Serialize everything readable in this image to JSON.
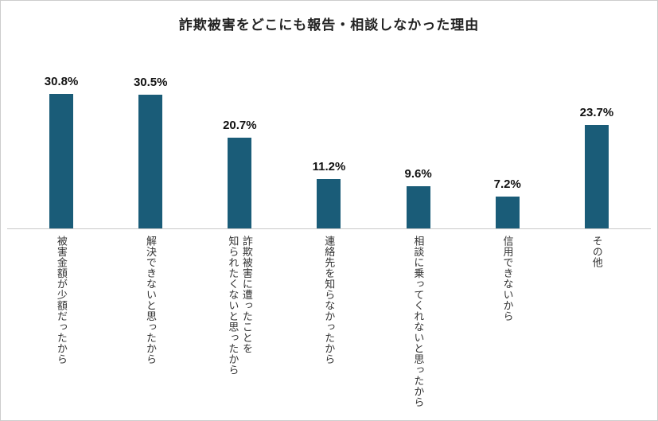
{
  "chart_data": {
    "type": "bar",
    "title": "詐欺被害をどこにも報告・相談しなかった理由",
    "categories": [
      "被害金額が少額だったから",
      "解決できないと思ったから",
      "詐欺被害に遭ったことを\n知られたくないと思ったから",
      "連絡先を知らなかったから",
      "相談に乗ってくれないと思ったから",
      "信用できないから",
      "その他"
    ],
    "values": [
      30.8,
      30.5,
      20.7,
      11.2,
      9.6,
      7.2,
      23.7
    ],
    "value_labels": [
      "30.8%",
      "30.5%",
      "20.7%",
      "11.2%",
      "9.6%",
      "7.2%",
      "23.7%"
    ],
    "unit": "%",
    "bar_color": "#1a5c78",
    "axis_line_color": "#c9c9c9",
    "ylim": [
      0,
      33
    ],
    "grid": false,
    "legend": "none"
  }
}
